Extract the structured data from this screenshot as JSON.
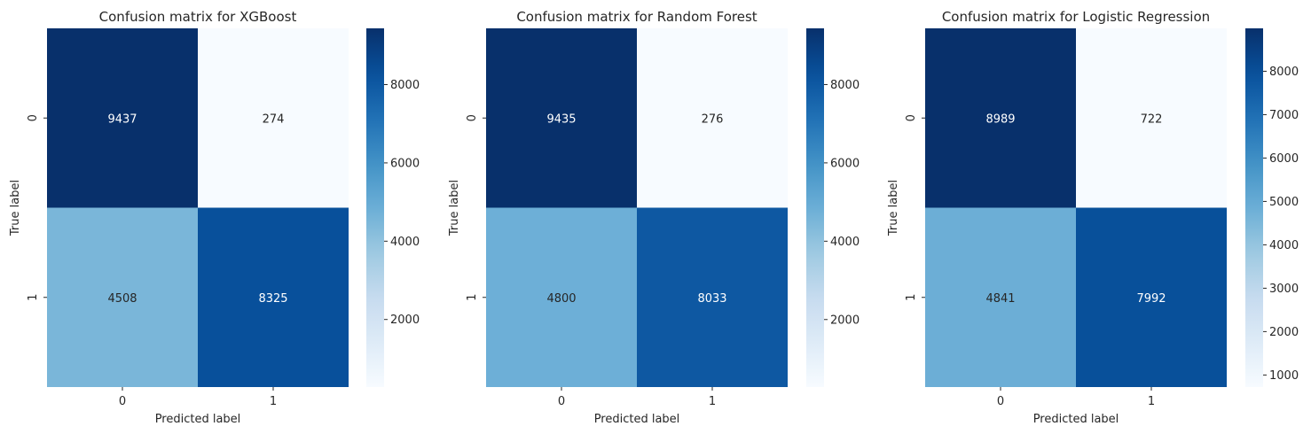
{
  "chart_data": [
    {
      "type": "heatmap",
      "title": "Confusion matrix for XGBoost",
      "xlabel": "Predicted label",
      "ylabel": "True label",
      "x_categories": [
        "0",
        "1"
      ],
      "y_categories": [
        "0",
        "1"
      ],
      "values": [
        [
          9437,
          274
        ],
        [
          4508,
          8325
        ]
      ],
      "colormap": "Blues",
      "colorbar": {
        "range": [
          274,
          9437
        ],
        "ticks": [
          2000,
          4000,
          6000,
          8000
        ]
      }
    },
    {
      "type": "heatmap",
      "title": "Confusion matrix for Random Forest",
      "xlabel": "Predicted label",
      "ylabel": "True label",
      "x_categories": [
        "0",
        "1"
      ],
      "y_categories": [
        "0",
        "1"
      ],
      "values": [
        [
          9435,
          276
        ],
        [
          4800,
          8033
        ]
      ],
      "colormap": "Blues",
      "colorbar": {
        "range": [
          276,
          9435
        ],
        "ticks": [
          2000,
          4000,
          6000,
          8000
        ]
      }
    },
    {
      "type": "heatmap",
      "title": "Confusion matrix for Logistic Regression",
      "xlabel": "Predicted label",
      "ylabel": "True label",
      "x_categories": [
        "0",
        "1"
      ],
      "y_categories": [
        "0",
        "1"
      ],
      "values": [
        [
          8989,
          722
        ],
        [
          4841,
          7992
        ]
      ],
      "colormap": "Blues",
      "colorbar": {
        "range": [
          722,
          8989
        ],
        "ticks": [
          1000,
          2000,
          3000,
          4000,
          5000,
          6000,
          7000,
          8000
        ]
      }
    }
  ]
}
